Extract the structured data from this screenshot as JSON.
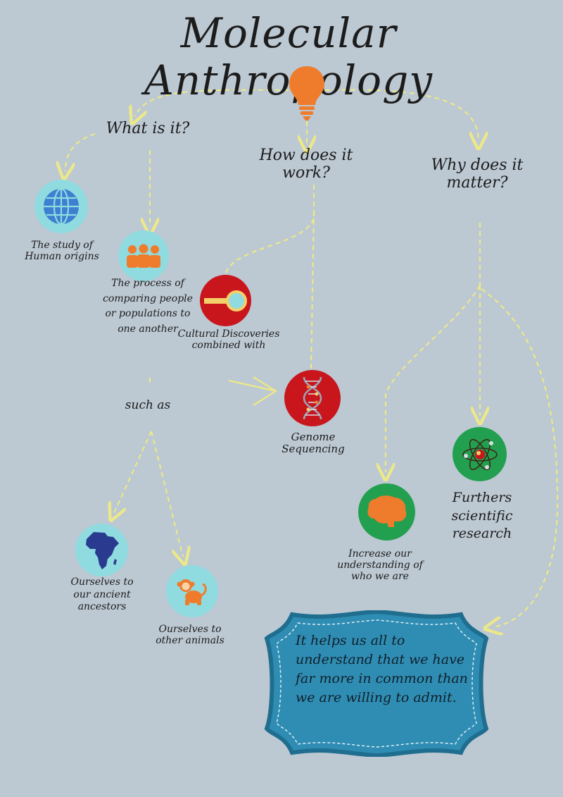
{
  "title": "Molecular Anthropology",
  "questions": {
    "what": "What is it?",
    "how": "How does it work?",
    "why": "Why does it matter?"
  },
  "nodes": {
    "study": "The study of Human origins",
    "process": "The process of comparing people or populations to one another",
    "such_as": "such as",
    "ancestors": "Ourselves to our ancient ancestors",
    "animals": "Ourselves to other animals",
    "cultural": "Cultural Discoveries combined with",
    "genome": "Genome Sequencing",
    "increase": "Increase our understanding of who we are",
    "furthers": "Furthers scientific research"
  },
  "conclusion": "It helps us all to understand that we have far more in common than we are willing to admit.",
  "icons": {
    "bulb": "lightbulb-icon",
    "globe": "globe-icon",
    "people": "people-icon",
    "magnifier": "magnifier-icon",
    "dna": "dna-icon",
    "africa": "africa-map-icon",
    "monkey": "monkey-icon",
    "brain": "brain-icon",
    "atom": "atom-icon"
  },
  "colors": {
    "background": "#bcc8d2",
    "connector": "#ece88a",
    "orange": "#ef7c2c",
    "light_teal": "#8fdbe0",
    "red": "#c8161c",
    "green": "#23a04f",
    "banner_fill": "#2f8db4",
    "banner_border": "#1f6e8f"
  }
}
